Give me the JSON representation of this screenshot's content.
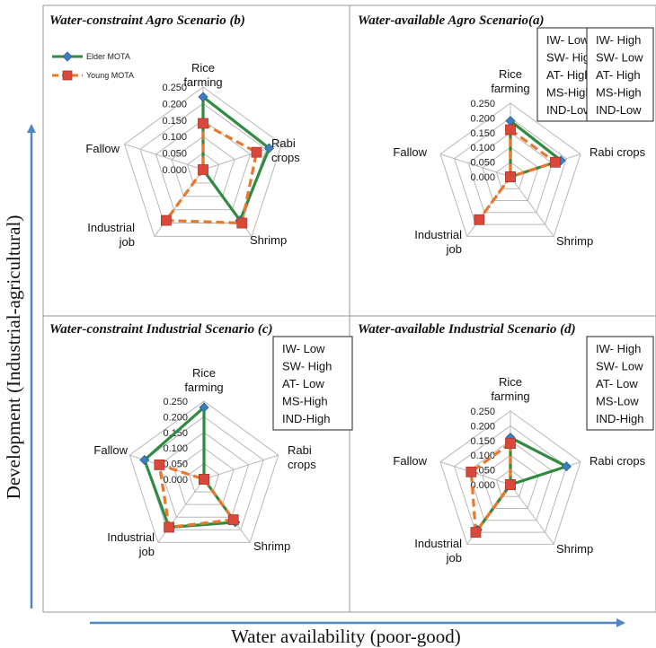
{
  "axes": {
    "y_label": "Development (Industrial-agricultural)",
    "x_label": "Water availability (poor-good)"
  },
  "legend": {
    "elder": "Elder MOTA",
    "young": "Young MOTA"
  },
  "colors": {
    "elder": "#2e8b3f",
    "young": "#e8782e",
    "elder_marker": "#3a7fc0",
    "young_marker": "#d9483b",
    "arrow": "#4f86c6",
    "grid": "#b8b8b8",
    "frame": "#9a9a9a"
  },
  "chart_data": [
    {
      "type": "radar",
      "title": "Water-constraint Agro Scenario (b)",
      "categories": [
        "Rice farming",
        "Rabi crops",
        "Shrimp",
        "Industrial job",
        "Fallow"
      ],
      "category_labels": [
        [
          "Rice",
          "farming"
        ],
        [
          "Rabi",
          "crops"
        ],
        [
          "Shrimp"
        ],
        [
          "Industrial",
          "job"
        ],
        [
          "Fallow"
        ]
      ],
      "ticks": [
        "0.250",
        "0.200",
        "0.150",
        "0.100",
        "0.050",
        "0.000"
      ],
      "rmax": 0.25,
      "series": [
        {
          "name": "Elder MOTA",
          "values": [
            0.22,
            0.21,
            0.19,
            0.0,
            0.0
          ]
        },
        {
          "name": "Young MOTA",
          "values": [
            0.14,
            0.17,
            0.2,
            0.19,
            0.0
          ]
        }
      ],
      "info_box": [
        "IW- Low",
        "SW- High",
        "AT- High",
        "MS-High",
        "IND-Low"
      ]
    },
    {
      "type": "radar",
      "title": "Water-available Agro Scenario(a)",
      "categories": [
        "Rice farming",
        "Rabi crops",
        "Shrimp",
        "Industrial job",
        "Fallow"
      ],
      "category_labels": [
        [
          "Rice",
          "farming"
        ],
        [
          "Rabi crops"
        ],
        [
          "Shrimp"
        ],
        [
          "Industrial",
          "job"
        ],
        [
          "Fallow"
        ]
      ],
      "ticks": [
        "0.250",
        "0.200",
        "0.150",
        "0.100",
        "0.050",
        "0.000"
      ],
      "rmax": 0.25,
      "series": [
        {
          "name": "Elder MOTA",
          "values": [
            0.19,
            0.18,
            0.0,
            0.0,
            0.0
          ]
        },
        {
          "name": "Young MOTA",
          "values": [
            0.16,
            0.16,
            0.0,
            0.18,
            0.0
          ]
        }
      ],
      "info_box": [
        "IW- High",
        "SW- Low",
        "AT- High",
        "MS-High",
        "IND-Low"
      ]
    },
    {
      "type": "radar",
      "title": "Water-constraint Industrial Scenario (c)",
      "categories": [
        "Rice farming",
        "Rabi crops",
        "Shrimp",
        "Industrial job",
        "Fallow"
      ],
      "category_labels": [
        [
          "Rice",
          "farming"
        ],
        [
          "Rabi",
          "crops"
        ],
        [
          "Shrimp"
        ],
        [
          "Industrial",
          "job"
        ],
        [
          "Fallow"
        ]
      ],
      "ticks": [
        "0.250",
        "0.200",
        "0.150",
        "0.100",
        "0.050",
        "0.000"
      ],
      "rmax": 0.25,
      "series": [
        {
          "name": "Elder MOTA",
          "values": [
            0.23,
            0.0,
            0.17,
            0.19,
            0.2
          ]
        },
        {
          "name": "Young MOTA",
          "values": [
            0.0,
            0.0,
            0.16,
            0.19,
            0.15
          ]
        }
      ],
      "info_box": [
        "IW- Low",
        "SW- High",
        "AT- Low",
        "MS-High",
        "IND-High"
      ]
    },
    {
      "type": "radar",
      "title": "Water-available Industrial Scenario (d)",
      "categories": [
        "Rice farming",
        "Rabi crops",
        "Shrimp",
        "Industrial job",
        "Fallow"
      ],
      "category_labels": [
        [
          "Rice",
          "farming"
        ],
        [
          "Rabi crops"
        ],
        [
          "Shrimp"
        ],
        [
          "Industrial",
          "job"
        ],
        [
          "Fallow"
        ]
      ],
      "ticks": [
        "0.250",
        "0.200",
        "0.150",
        "0.100",
        "0.050",
        "0.000"
      ],
      "rmax": 0.25,
      "series": [
        {
          "name": "Elder MOTA",
          "values": [
            0.16,
            0.2,
            0.0,
            0.19,
            0.0
          ]
        },
        {
          "name": "Young MOTA",
          "values": [
            0.14,
            0.0,
            0.0,
            0.2,
            0.14
          ]
        }
      ],
      "info_box": [
        "IW- High",
        "SW- Low",
        "AT- Low",
        "MS-Low",
        "IND-High"
      ]
    }
  ]
}
